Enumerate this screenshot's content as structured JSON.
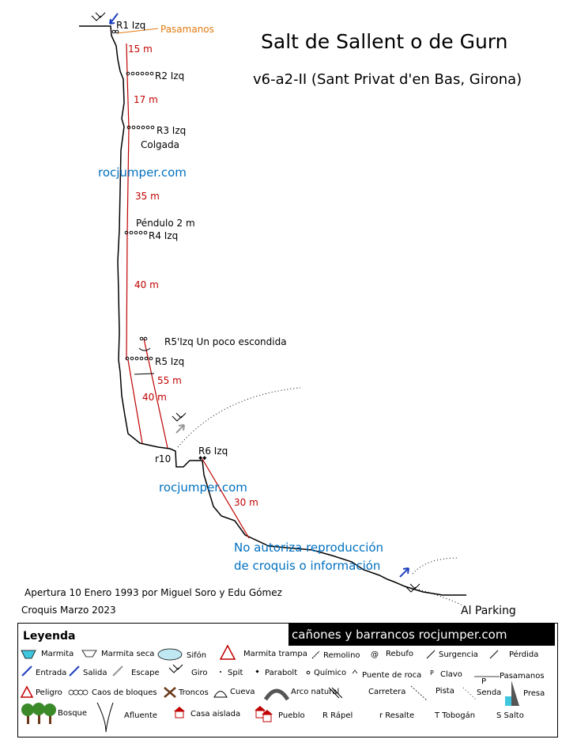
{
  "header": {
    "title": "Salt de Sallent  o de Gurn",
    "subtitle": "v6-a2-II  (Sant Privat d'en Bas, Girona)"
  },
  "anchors": {
    "r1": "R1 Izq",
    "pasamanos": "Pasamanos",
    "r2": "R2 Izq",
    "r3": "R3 Izq",
    "r3_note": "Colgada",
    "pendulo": "Péndulo 2 m",
    "r4": "R4 Izq",
    "r5p": "R5'Izq  Un poco escondida",
    "r5": "R5 Izq",
    "r10": "r10",
    "r6": "R6 Izq"
  },
  "pitches": {
    "p1": "15 m",
    "p2": "17 m",
    "p3": "35 m",
    "p4": "40 m",
    "p5a": "55 m",
    "p5b": "40 m",
    "p6": "30 m"
  },
  "watermarks": {
    "w1": "rocjumper.com",
    "w2": "rocjumper.com",
    "copyright1": "No autoriza reproducción",
    "copyright2": "de croquis o información"
  },
  "credits": {
    "apertura": "Apertura 10 Enero 1993 por Miguel Soro y Edu Gómez",
    "croquis": "Croquis Marzo 2023"
  },
  "parking": "Al Parking",
  "legend": {
    "title": "Leyenda",
    "banner": "cañones y barrancos  rocjumper.com",
    "items": {
      "marmita": "Marmita",
      "marmita_seca": "Marmita seca",
      "sifon": "Sifón",
      "marmita_trampa": "Marmita trampa",
      "remolino": "Remolino",
      "rebufo": "Rebufo",
      "surgencia": "Surgencia",
      "perdida": "Pérdida",
      "entrada": "Entrada",
      "salida": "Salida",
      "escape": "Escape",
      "giro": "Giro",
      "spit": "Spit",
      "parabolt": "Parabolt",
      "quimico": "Químico",
      "puente_roca": "Puente de roca",
      "clavo": "Clavo",
      "pasamanos": "Pasamanos",
      "peligro": "Peligro",
      "caos": "Caos de bloques",
      "troncos": "Troncos",
      "cueva": "Cueva",
      "arco": "Arco natural",
      "carretera": "Carretera",
      "pista": "Pista",
      "senda": "Senda",
      "presa": "Presa",
      "bosque": "Bosque",
      "afluente": "Afluente",
      "casa": "Casa aislada",
      "pueblo": "Pueblo",
      "rapel": "R Rápel",
      "resalte": "r Resalte",
      "tobogan": "T Tobogán",
      "salto": "S Salto",
      "pasamanos_p": "P"
    }
  },
  "colors": {
    "rope": "#c00000",
    "watermark": "#0070c0",
    "pasamanos": "#e07a10",
    "entrada": "#1f3fbf"
  }
}
